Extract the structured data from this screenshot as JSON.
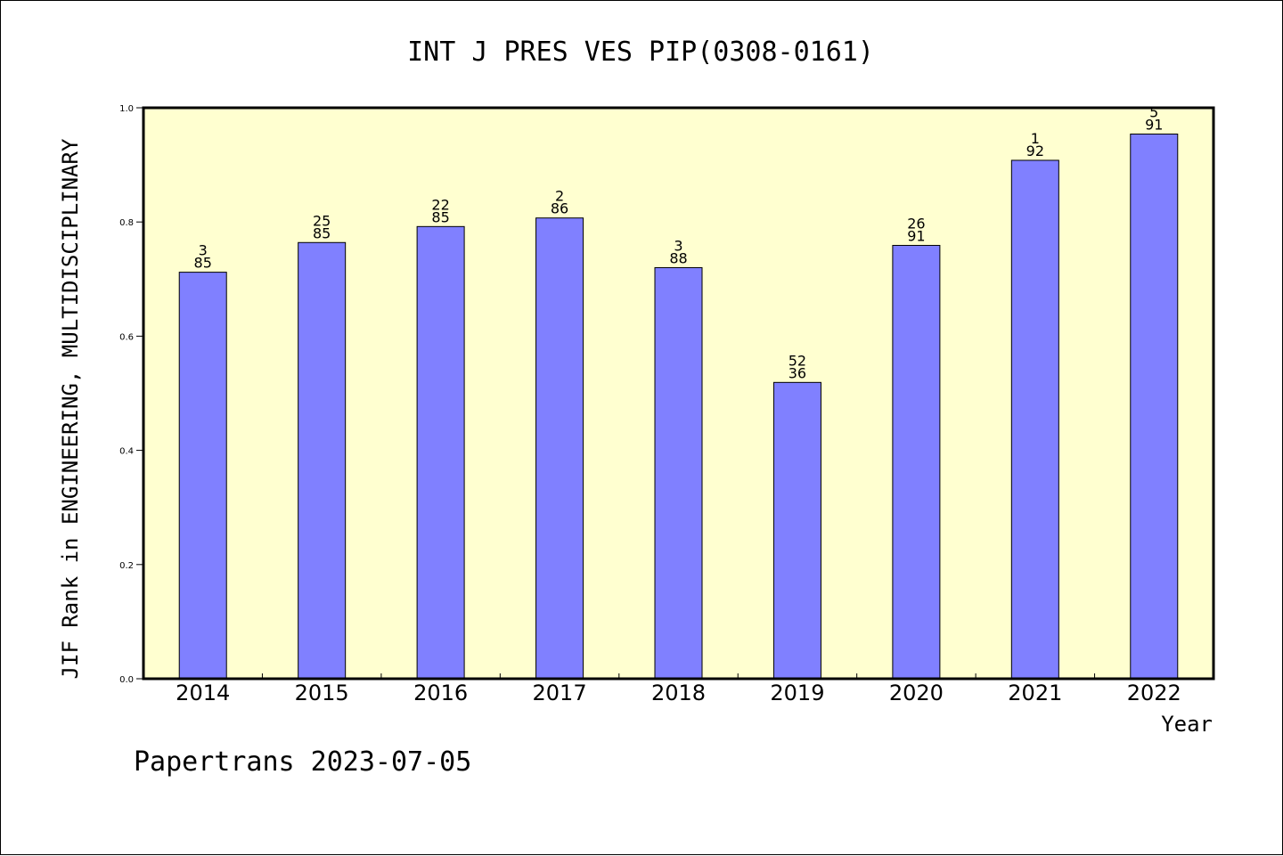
{
  "footer": {
    "credit": "Papertrans 2023-07-05"
  },
  "chart_data": {
    "type": "bar",
    "title": "INT J PRES VES PIP(0308-0161)",
    "xlabel": "Year",
    "ylabel": "JIF Rank in ENGINEERING, MULTIDISCIPLINARY",
    "ylim": [
      0,
      1.0
    ],
    "yticks": [
      "0.0",
      "0.2",
      "0.4",
      "0.6",
      "0.8",
      "1.0"
    ],
    "grid": false,
    "legend": "none",
    "categories": [
      "2014",
      "2015",
      "2016",
      "2017",
      "2018",
      "2019",
      "2020",
      "2021",
      "2022"
    ],
    "values": [
      0.712,
      0.764,
      0.792,
      0.807,
      0.72,
      0.519,
      0.759,
      0.908,
      0.954
    ],
    "bar_labels": [
      [
        "3",
        "85"
      ],
      [
        "25",
        "85"
      ],
      [
        "22",
        "85"
      ],
      [
        "2",
        "86"
      ],
      [
        "3",
        "88"
      ],
      [
        "52",
        "36"
      ],
      [
        "26",
        "91"
      ],
      [
        "1",
        "92"
      ],
      [
        "5",
        "91"
      ]
    ],
    "colors": {
      "bar": "#8080ff",
      "plot_background": "#ffffd0",
      "axis": "#000000"
    }
  }
}
